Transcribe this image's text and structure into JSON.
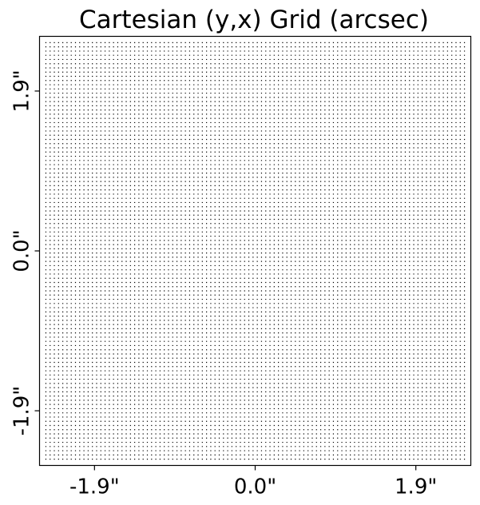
{
  "chart_data": {
    "type": "scatter",
    "title": "Cartesian (y,x) Grid (arcsec)",
    "xlabel": "",
    "ylabel": "",
    "grid": false,
    "legend": "none",
    "xlim": [
      -2.55,
      2.55
    ],
    "ylim": [
      -2.55,
      2.55
    ],
    "x_ticks": [
      {
        "value": -1.9,
        "label": "-1.9\""
      },
      {
        "value": 0.0,
        "label": "0.0\""
      },
      {
        "value": 1.9,
        "label": "1.9\""
      }
    ],
    "y_ticks": [
      {
        "value": -1.9,
        "label": "-1.9\""
      },
      {
        "value": 0.0,
        "label": "0.0\""
      },
      {
        "value": 1.9,
        "label": "1.9\""
      }
    ],
    "grid_points": {
      "description_of_values": "uniform grid of (y,x) coordinates",
      "shape": [
        100,
        100
      ],
      "pixel_scale": 0.05,
      "x_min": -2.475,
      "x_max": 2.475,
      "y_min": -2.475,
      "y_max": 2.475,
      "marker_color": "#000000"
    }
  }
}
